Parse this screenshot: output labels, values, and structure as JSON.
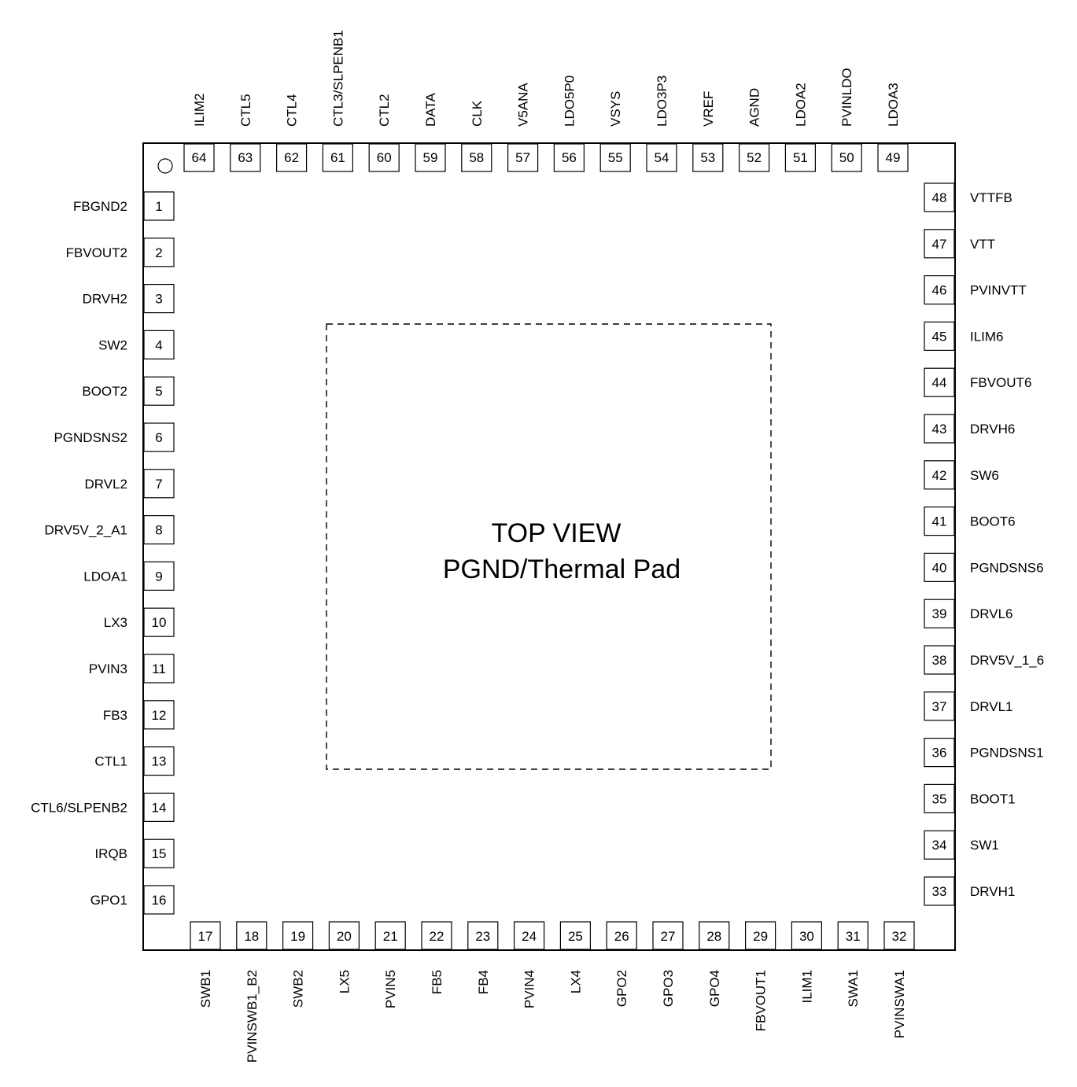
{
  "diagram": {
    "center_title": "TOP VIEW",
    "center_subtitle": "PGND/Thermal Pad",
    "pins": {
      "left": [
        {
          "num": "1",
          "name": "FBGND2"
        },
        {
          "num": "2",
          "name": "FBVOUT2"
        },
        {
          "num": "3",
          "name": "DRVH2"
        },
        {
          "num": "4",
          "name": "SW2"
        },
        {
          "num": "5",
          "name": "BOOT2"
        },
        {
          "num": "6",
          "name": "PGNDSNS2"
        },
        {
          "num": "7",
          "name": "DRVL2"
        },
        {
          "num": "8",
          "name": "DRV5V_2_A1"
        },
        {
          "num": "9",
          "name": "LDOA1"
        },
        {
          "num": "10",
          "name": "LX3"
        },
        {
          "num": "11",
          "name": "PVIN3"
        },
        {
          "num": "12",
          "name": "FB3"
        },
        {
          "num": "13",
          "name": "CTL1"
        },
        {
          "num": "14",
          "name": "CTL6/SLPENB2"
        },
        {
          "num": "15",
          "name": "IRQB"
        },
        {
          "num": "16",
          "name": "GPO1"
        }
      ],
      "bottom": [
        {
          "num": "17",
          "name": "SWB1"
        },
        {
          "num": "18",
          "name": "PVINSWB1_B2"
        },
        {
          "num": "19",
          "name": "SWB2"
        },
        {
          "num": "20",
          "name": "LX5"
        },
        {
          "num": "21",
          "name": "PVIN5"
        },
        {
          "num": "22",
          "name": "FB5"
        },
        {
          "num": "23",
          "name": "FB4"
        },
        {
          "num": "24",
          "name": "PVIN4"
        },
        {
          "num": "25",
          "name": "LX4"
        },
        {
          "num": "26",
          "name": "GPO2"
        },
        {
          "num": "27",
          "name": "GPO3"
        },
        {
          "num": "28",
          "name": "GPO4"
        },
        {
          "num": "29",
          "name": "FBVOUT1"
        },
        {
          "num": "30",
          "name": "ILIM1"
        },
        {
          "num": "31",
          "name": "SWA1"
        },
        {
          "num": "32",
          "name": "PVINSWA1"
        }
      ],
      "right": [
        {
          "num": "33",
          "name": "DRVH1"
        },
        {
          "num": "34",
          "name": "SW1"
        },
        {
          "num": "35",
          "name": "BOOT1"
        },
        {
          "num": "36",
          "name": "PGNDSNS1"
        },
        {
          "num": "37",
          "name": "DRVL1"
        },
        {
          "num": "38",
          "name": "DRV5V_1_6"
        },
        {
          "num": "39",
          "name": "DRVL6"
        },
        {
          "num": "40",
          "name": "PGNDSNS6"
        },
        {
          "num": "41",
          "name": "BOOT6"
        },
        {
          "num": "42",
          "name": "SW6"
        },
        {
          "num": "43",
          "name": "DRVH6"
        },
        {
          "num": "44",
          "name": "FBVOUT6"
        },
        {
          "num": "45",
          "name": "ILIM6"
        },
        {
          "num": "46",
          "name": "PVINVTT"
        },
        {
          "num": "47",
          "name": "VTT"
        },
        {
          "num": "48",
          "name": "VTTFB"
        }
      ],
      "top": [
        {
          "num": "49",
          "name": "LDOA3"
        },
        {
          "num": "50",
          "name": "PVINLDO"
        },
        {
          "num": "51",
          "name": "LDOA2"
        },
        {
          "num": "52",
          "name": "AGND"
        },
        {
          "num": "53",
          "name": "VREF"
        },
        {
          "num": "54",
          "name": "LDO3P3"
        },
        {
          "num": "55",
          "name": "VSYS"
        },
        {
          "num": "56",
          "name": "LDO5P0"
        },
        {
          "num": "57",
          "name": "V5ANA"
        },
        {
          "num": "58",
          "name": "CLK"
        },
        {
          "num": "59",
          "name": "DATA"
        },
        {
          "num": "60",
          "name": "CTL2"
        },
        {
          "num": "61",
          "name": "CTL3/SLPENB1"
        },
        {
          "num": "62",
          "name": "CTL4"
        },
        {
          "num": "63",
          "name": "CTL5"
        },
        {
          "num": "64",
          "name": "ILIM2"
        }
      ]
    }
  }
}
